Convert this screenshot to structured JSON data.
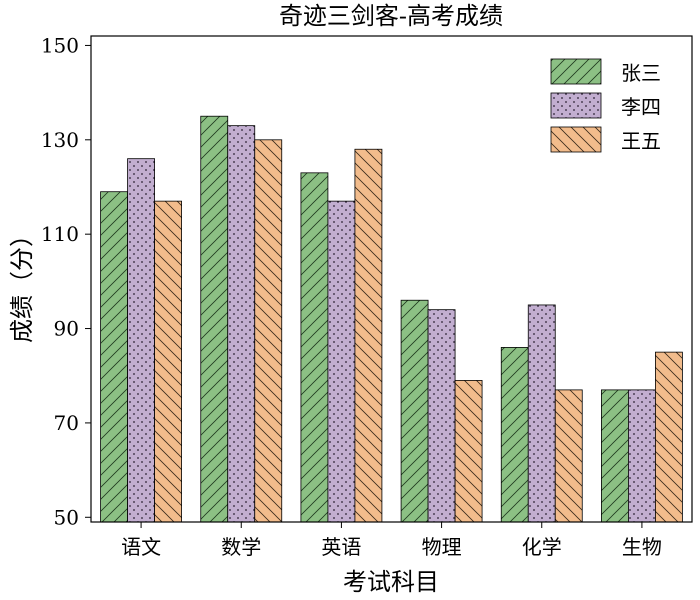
{
  "chart_data": {
    "type": "bar",
    "title": "奇迹三剑客-高考成绩",
    "xlabel": "考试科目",
    "ylabel": "成绩（分）",
    "categories": [
      "语文",
      "数学",
      "英语",
      "物理",
      "化学",
      "生物"
    ],
    "ylim": [
      49,
      152
    ],
    "yticks": [
      50,
      70,
      90,
      110,
      130,
      150
    ],
    "grid": false,
    "legend_position": "top-right",
    "series": [
      {
        "name": "张三",
        "values": [
          119,
          135,
          123,
          96,
          86,
          77
        ],
        "color": "#8cc084",
        "hatch": "diagonal-up"
      },
      {
        "name": "李四",
        "values": [
          126,
          133,
          117,
          94,
          95,
          77
        ],
        "color": "#c2aed0",
        "hatch": "dots"
      },
      {
        "name": "王五",
        "values": [
          117,
          130,
          128,
          79,
          77,
          85
        ],
        "color": "#f2bc8c",
        "hatch": "diagonal-down"
      }
    ]
  }
}
